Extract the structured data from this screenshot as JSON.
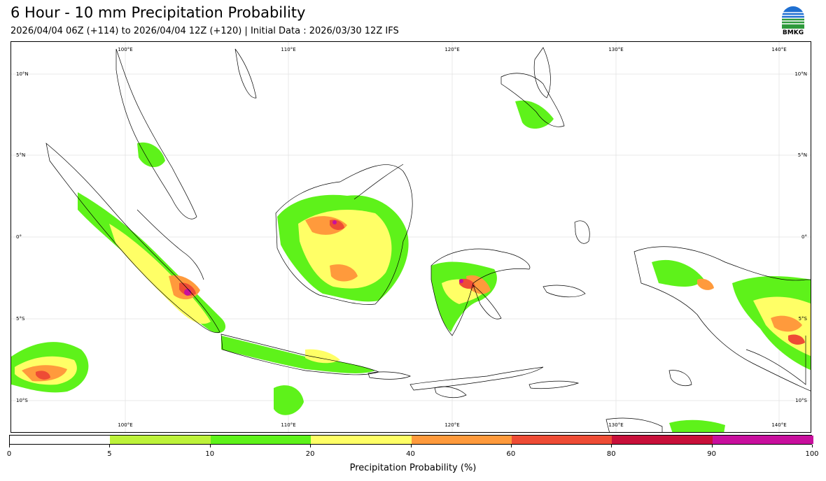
{
  "header": {
    "title": "6 Hour - 10 mm Precipitation Probability",
    "subtitle": "2026/04/04 06Z (+114) to 2026/04/04 12Z (+120) | Initial Data : 2026/03/30 12Z IFS",
    "logo_text": "BMKG"
  },
  "map": {
    "lon_labels": [
      "100°E",
      "110°E",
      "120°E",
      "130°E",
      "140°E"
    ],
    "lat_labels": [
      "10°N",
      "5°N",
      "0°",
      "5°S",
      "10°S"
    ],
    "colors": {
      "land_outline": "#000000",
      "grid": "#d9d9d9"
    }
  },
  "legend": {
    "title": "Precipitation Probability (%)",
    "ticks": [
      "0",
      "5",
      "10",
      "20",
      "40",
      "60",
      "80",
      "90",
      "100"
    ],
    "bins": [
      {
        "from": 0,
        "to": 5,
        "color": "#ffffff"
      },
      {
        "from": 5,
        "to": 10,
        "color": "#bdf23a"
      },
      {
        "from": 10,
        "to": 20,
        "color": "#5ef21a"
      },
      {
        "from": 20,
        "to": 40,
        "color": "#ffff66"
      },
      {
        "from": 40,
        "to": 60,
        "color": "#ff9a3c"
      },
      {
        "from": 60,
        "to": 80,
        "color": "#ee4c35"
      },
      {
        "from": 80,
        "to": 90,
        "color": "#c8103a"
      },
      {
        "from": 90,
        "to": 100,
        "color": "#c80f9d"
      }
    ]
  }
}
